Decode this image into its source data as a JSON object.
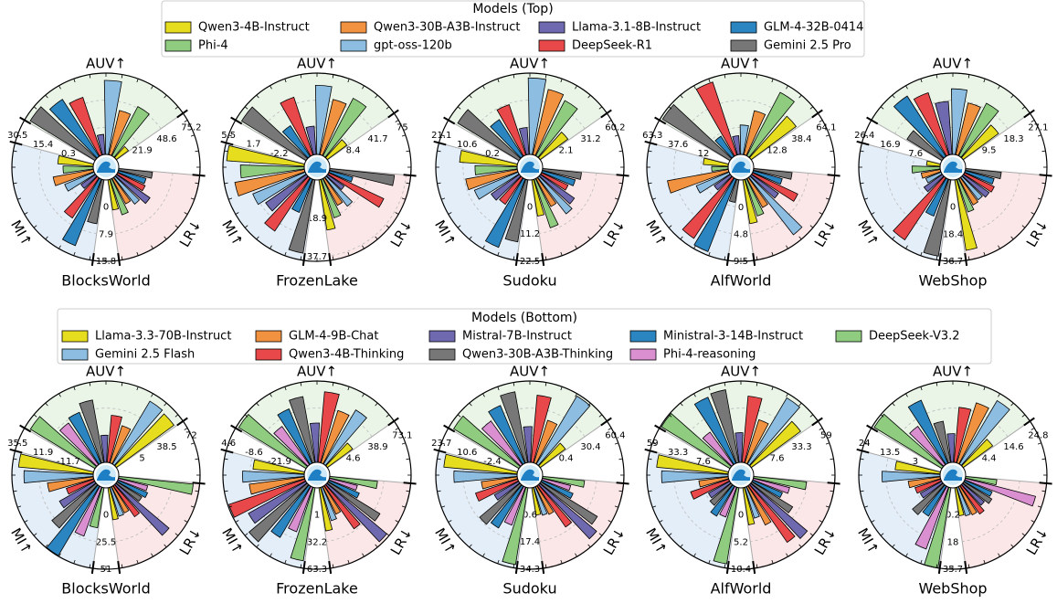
{
  "chart_data": [
    {
      "type": "polar-bar",
      "legend_title": "Models (Top)",
      "series": [
        {
          "name": "Qwen3-4B-Instruct",
          "color": "#e6dd1f"
        },
        {
          "name": "Phi-4",
          "color": "#8fcc80"
        },
        {
          "name": "Qwen3-30B-A3B-Instruct",
          "color": "#f0923f"
        },
        {
          "name": "gpt-oss-120b",
          "color": "#8dbde0"
        },
        {
          "name": "Llama-3.1-8B-Instruct",
          "color": "#6f6ab0"
        },
        {
          "name": "DeepSeek-R1",
          "color": "#e8484a"
        },
        {
          "name": "GLM-4-32B-0414",
          "color": "#2b85c0"
        },
        {
          "name": "Gemini 2.5 Pro",
          "color": "#777777"
        }
      ],
      "panels": [
        {
          "title": "BlocksWorld",
          "axes": [
            {
              "label": "AUV↑",
              "lim": [
                -4.8,
                75.2
              ],
              "ticks": [
                21.9,
                48.6,
                75.2
              ],
              "values": [
                10,
                50,
                40,
                68,
                15,
                55,
                62,
                70
              ]
            },
            {
              "label": "LR↓",
              "lim": [
                -7.9,
                15.8
              ],
              "ticks": [
                0,
                7.9,
                15.8
              ],
              "values": [
                1,
                3,
                0.5,
                2,
                4,
                1,
                0.5,
                2
              ]
            },
            {
              "label": "MI↑",
              "lim": [
                -14.8,
                30.5
              ],
              "ticks": [
                0.3,
                15.4,
                30.5
              ],
              "values": [
                5,
                2,
                8,
                3,
                -5,
                12,
                25,
                10
              ]
            }
          ]
        },
        {
          "title": "FrozenLake",
          "axes": [
            {
              "label": "AUV↑",
              "lim": [
                -24.9,
                75.0
              ],
              "ticks": [
                8.4,
                41.7,
                75.0
              ],
              "values": [
                5,
                55,
                45,
                60,
                10,
                50,
                20,
                68
              ]
            },
            {
              "label": "LR↓",
              "lim": [
                0,
                40
              ],
              "ticks": [
                18.9,
                37.7
              ],
              "values": [
                25,
                20,
                15,
                18,
                10,
                30,
                12,
                32
              ]
            },
            {
              "label": "MI↑",
              "lim": [
                -6.1,
                5.5
              ],
              "ticks": [
                -2.2,
                1.7,
                5.5
              ],
              "values": [
                5,
                3,
                4,
                2,
                1,
                3,
                -1,
                4.5
              ]
            }
          ]
        },
        {
          "title": "Sudoku",
          "axes": [
            {
              "label": "AUV↑",
              "lim": [
                -27,
                60.2
              ],
              "ticks": [
                2.1,
                31.2,
                60.2
              ],
              "values": [
                10,
                40,
                45,
                55,
                2,
                30,
                20,
                50
              ]
            },
            {
              "label": "LR↓",
              "lim": [
                -11.2,
                22.5
              ],
              "ticks": [
                0,
                11.2,
                22.5
              ],
              "values": [
                4,
                10,
                2,
                8,
                6,
                1,
                3,
                5
              ]
            },
            {
              "label": "MI↑",
              "lim": [
                -10.2,
                21.1
              ],
              "ticks": [
                0.2,
                10.6,
                21.1
              ],
              "values": [
                12,
                6,
                10,
                8,
                3,
                2,
                18,
                14
              ]
            }
          ]
        },
        {
          "title": "AlfWorld",
          "axes": [
            {
              "label": "AUV↑",
              "lim": [
                -12.8,
                64.1
              ],
              "ticks": [
                12.8,
                38.4,
                64.1
              ],
              "values": [
                40,
                55,
                30,
                15,
                5,
                60,
                10,
                62
              ]
            },
            {
              "label": "LR↓",
              "lim": [
                -4.8,
                9.5
              ],
              "ticks": [
                0,
                4.8,
                9.5
              ],
              "values": [
                3,
                2,
                1,
                8,
                1,
                4,
                0.5,
                2
              ]
            },
            {
              "label": "MI↑",
              "lim": [
                -13.6,
                63.3
              ],
              "ticks": [
                12.0,
                37.6,
                63.3
              ],
              "values": [
                10,
                2,
                45,
                20,
                5,
                55,
                60,
                8
              ]
            }
          ]
        },
        {
          "title": "WebShop",
          "axes": [
            {
              "label": "AUV↑",
              "lim": [
                0.7,
                27.1
              ],
              "ticks": [
                9.5,
                18.3,
                27.1
              ],
              "values": [
                15,
                20,
                18,
                22,
                18,
                22,
                24,
                14
              ]
            },
            {
              "label": "LR↓",
              "lim": [
                -18.3,
                36.7
              ],
              "ticks": [
                0,
                18.4,
                36.7
              ],
              "values": [
                30,
                5,
                2,
                1,
                3,
                4,
                2,
                6
              ]
            },
            {
              "label": "MI↑",
              "lim": [
                -1.7,
                26.4
              ],
              "ticks": [
                7.6,
                16.9,
                26.4
              ],
              "values": [
                3,
                8,
                5,
                4,
                6,
                24,
                12,
                25
              ]
            }
          ]
        }
      ]
    },
    {
      "type": "polar-bar",
      "legend_title": "Models (Bottom)",
      "series": [
        {
          "name": "Llama-3.3-70B-Instruct",
          "color": "#e6dd1f"
        },
        {
          "name": "Gemini 2.5 Flash",
          "color": "#8dbde0"
        },
        {
          "name": "GLM-4-9B-Chat",
          "color": "#f0923f"
        },
        {
          "name": "Qwen3-4B-Thinking",
          "color": "#e8484a"
        },
        {
          "name": "Mistral-7B-Instruct",
          "color": "#6f6ab0"
        },
        {
          "name": "Qwen3-30B-A3B-Thinking",
          "color": "#777777"
        },
        {
          "name": "Ministral-3-14B-Instruct",
          "color": "#2b85c0"
        },
        {
          "name": "Phi-4-reasoning",
          "color": "#d98fd0"
        },
        {
          "name": "DeepSeek-V3.2",
          "color": "#8fcc80"
        }
      ],
      "panels": [
        {
          "title": "BlocksWorld",
          "axes": [
            {
              "label": "AUV↑",
              "lim": [
                -28.5,
                72.0
              ],
              "ticks": [
                5.0,
                38.5,
                72.0
              ],
              "values": [
                60,
                62,
                20,
                30,
                5,
                50,
                40,
                35,
                65
              ]
            },
            {
              "label": "LR↓",
              "lim": [
                -25.5,
                51.0
              ],
              "ticks": [
                0,
                25.5,
                51.0
              ],
              "values": [
                5,
                3,
                2,
                10,
                40,
                2,
                5,
                3,
                45
              ]
            },
            {
              "label": "MI↑",
              "lim": [
                -35.3,
                35.5
              ],
              "ticks": [
                -11.7,
                11.9,
                35.5
              ],
              "values": [
                30,
                25,
                5,
                -10,
                0,
                15,
                35,
                10,
                0
              ]
            }
          ]
        },
        {
          "title": "FrozenLake",
          "axes": [
            {
              "label": "AUV↑",
              "lim": [
                -29.7,
                73.1
              ],
              "ticks": [
                4.6,
                38.9,
                73.1
              ],
              "values": [
                10,
                50,
                40,
                60,
                20,
                55,
                45,
                30,
                70
              ]
            },
            {
              "label": "LR↓",
              "lim": [
                -30.2,
                63.3
              ],
              "ticks": [
                1.0,
                32.2,
                63.3
              ],
              "values": [
                20,
                10,
                5,
                30,
                60,
                40,
                8,
                3,
                25
              ]
            },
            {
              "label": "MI↑",
              "lim": [
                -35.2,
                4.6
              ],
              "ticks": [
                -21.9,
                -8.6,
                4.6
              ],
              "values": [
                -10,
                -5,
                -8,
                4,
                -3,
                2,
                -6,
                -12,
                1
              ]
            }
          ]
        },
        {
          "title": "Sudoku",
          "axes": [
            {
              "label": "AUV↑",
              "lim": [
                -29.6,
                60.4
              ],
              "ticks": [
                0.4,
                30.4,
                60.4
              ],
              "values": [
                5,
                58,
                20,
                45,
                10,
                50,
                40,
                30,
                55
              ]
            },
            {
              "label": "LR↓",
              "lim": [
                -16.2,
                34.3
              ],
              "ticks": [
                0.6,
                17.4,
                34.3
              ],
              "values": [
                1,
                2,
                3,
                15,
                30,
                25,
                5,
                2,
                10
              ]
            },
            {
              "label": "MI↑",
              "lim": [
                -15.4,
                23.7
              ],
              "ticks": [
                -2.4,
                10.6,
                23.7
              ],
              "values": [
                20,
                15,
                2,
                6,
                -2,
                10,
                8,
                4,
                22
              ]
            }
          ]
        },
        {
          "title": "AlfWorld",
          "axes": [
            {
              "label": "AUV↑",
              "lim": [
                -18.1,
                59.0
              ],
              "ticks": [
                7.6,
                33.3,
                59.0
              ],
              "values": [
                40,
                55,
                25,
                45,
                10,
                52,
                50,
                20,
                58
              ]
            },
            {
              "label": "LR↓",
              "lim": [
                -5.2,
                10.4
              ],
              "ticks": [
                0,
                5.2,
                10.4
              ],
              "values": [
                2,
                1,
                3,
                8,
                9,
                4,
                1,
                2,
                5
              ]
            },
            {
              "label": "MI↑",
              "lim": [
                -18.1,
                59.0
              ],
              "ticks": [
                7.6,
                33.3,
                59.0
              ],
              "values": [
                50,
                45,
                10,
                20,
                5,
                8,
                15,
                12,
                55
              ]
            }
          ]
        },
        {
          "title": "WebShop",
          "axes": [
            {
              "label": "AUV↑",
              "lim": [
                -5.8,
                24.8
              ],
              "ticks": [
                4.4,
                14.6,
                24.8
              ],
              "values": [
                8,
                22,
                18,
                15,
                5,
                10,
                20,
                12,
                24
              ]
            },
            {
              "label": "LR↓",
              "lim": [
                -17.6,
                35.7
              ],
              "ticks": [
                0.2,
                18.0,
                35.7
              ],
              "values": [
                1,
                2,
                3,
                5,
                1,
                4,
                2,
                30,
                3
              ]
            },
            {
              "label": "MI↑",
              "lim": [
                -7.5,
                24.0
              ],
              "ticks": [
                3.0,
                13.5,
                24.0
              ],
              "values": [
                10,
                15,
                5,
                3,
                2,
                8,
                6,
                18,
                24
              ]
            }
          ]
        }
      ]
    }
  ]
}
